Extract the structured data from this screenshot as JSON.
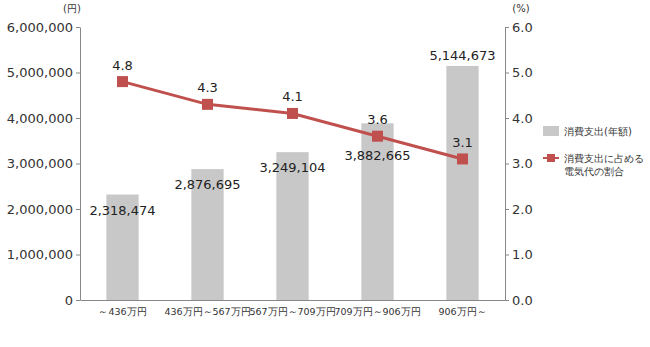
{
  "chart_data": {
    "type": "bar",
    "y_label": "(円)",
    "y2_label": "(%)",
    "categories": [
      "～436万円",
      "436万円～567万円",
      "567万円～709万円",
      "709万円～906万円",
      "906万円～"
    ],
    "series": [
      {
        "name": "消費支出(年額)",
        "type": "bar",
        "color": "#c8c8c8",
        "values": [
          2318474,
          2876695,
          3249104,
          3882665,
          5144673
        ],
        "value_labels": [
          "2,318,474",
          "2,876,695",
          "3,249,104",
          "3,882,665",
          "5,144,673"
        ]
      },
      {
        "name": "消費支出に占める電気代の割合",
        "type": "line",
        "axis": "y2",
        "color": "#c0504d",
        "marker": "square",
        "values": [
          4.8,
          4.3,
          4.1,
          3.6,
          3.1
        ]
      }
    ],
    "ylim": [
      0,
      6000000
    ],
    "yticks": [
      0,
      {
        "value": 1000000,
        "label": "1,000,000"
      },
      {
        "value": 2000000,
        "label": "2,000,000"
      },
      {
        "value": 3000000,
        "label": "3,000,000"
      },
      {
        "value": 4000000,
        "label": "4,000,000"
      },
      {
        "value": 5000000,
        "label": "5,000,000"
      },
      {
        "value": 6000000,
        "label": "6,000,000"
      }
    ],
    "y2lim": [
      0,
      6
    ],
    "y2ticks": [
      {
        "value": 0,
        "label": "0.0"
      },
      {
        "value": 1,
        "label": "1.0"
      },
      {
        "value": 2,
        "label": "2.0"
      },
      {
        "value": 3,
        "label": "3.0"
      },
      {
        "value": 4,
        "label": "4.0"
      },
      {
        "value": 5,
        "label": "5.0"
      },
      {
        "value": 6,
        "label": "6.0"
      }
    ],
    "grid": false,
    "legend": "right",
    "data_labels": true
  }
}
